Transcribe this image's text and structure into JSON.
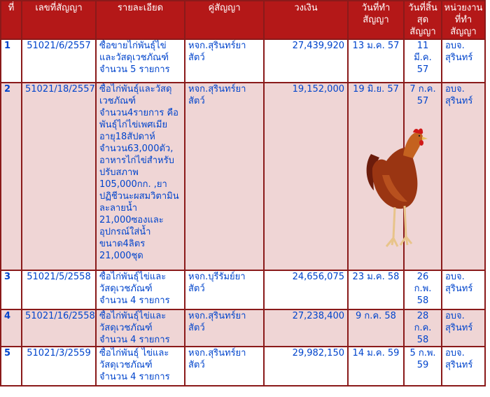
{
  "headers": [
    "ที่",
    "เลขที่สัญญา",
    "รายละเอียด",
    "คู่สัญญา",
    "วงเงิน",
    "วันที่ทำสัญญา",
    "วันที่สิ้นสุดสัญญา",
    "หน่วยงานที่ทำสัญญา"
  ],
  "rows": [
    {
      "no": "1",
      "contract": "51021/6/2557",
      "detail": "ซื้อขายไก่พันธุ์ไข่และวัสดุเวชภัณฑ์ จำนวน 5 รายการ",
      "party": "หจก.สุรินทร์ยาสัตว์",
      "amount": "27,439,920",
      "start": "13 ม.ค. 57",
      "end": "11 มี.ค. 57",
      "agency": "อบจ. สุรินทร์"
    },
    {
      "no": "2",
      "contract": "51021/18/2557",
      "detail": "ซื้อไก่พันธุ์และวัสดุเวชภัณฑ์ จำนวน4รายการ คือพันธุ์ไก่ไข่เพศเมียอายุ18สัปดาห์จำนวน63,000ตัว, อาหารไก่ไข่สำหรับปรับสภาพ 105,000กก. ,ยาปฏิชีวนะผสมวิตามินละลายน้ำ 21,000ซองและอุปกรณ์ใส่น้ำขนาด4ลิตร 21,000ชุด",
      "party": "หจก.สุรินทร์ยาสัตว์",
      "amount": "19,152,000",
      "start": "19 มิ.ย. 57",
      "end": "7 ก.ค. 57",
      "agency": "อบจ. สุรินทร์"
    },
    {
      "no": "3",
      "contract": "51021/5/2558",
      "detail": "ซื้อไก่พันธุ์ไข่และวัสดุเวชภัณฑ์ จำนวน 4 รายการ",
      "party": "หจก.บุรีรัมย์ยาสัตว์",
      "amount": "24,656,075",
      "start": "23 ม.ค. 58",
      "end": "26 ก.พ. 58",
      "agency": "อบจ. สุรินทร์"
    },
    {
      "no": "4",
      "contract": "51021/16/2558",
      "detail": "ซื้อไก่พันธุ์ไข่และวัสดุเวชภัณฑ์ จำนวน 4 รายการ",
      "party": "หจก.สุรินทร์ยาสัตว์",
      "amount": "27,238,400",
      "start": "9 ก.ค. 58",
      "end": "28 ก.ค. 58",
      "agency": "อบจ. สุรินทร์"
    },
    {
      "no": "5",
      "contract": "51021/3/2559",
      "detail": "ซื้อไก่พันธุ์ ไข่และวัสดุเวชภัณฑ์ จำนวน 4 รายการ",
      "party": "หจก.สุรินทร์ยาสัตว์",
      "amount": "29,982,150",
      "start": "14 ม.ค. 59",
      "end": "5 ก.พ. 59",
      "agency": "อบจ. สุรินทร์"
    }
  ],
  "colors": {
    "header_bg": "#b41818",
    "header_text": "#ffffff",
    "body_text": "#0044cc",
    "row_alt": "#efd5d5",
    "border": "#8a1a1a"
  },
  "illustration": "hen-icon"
}
